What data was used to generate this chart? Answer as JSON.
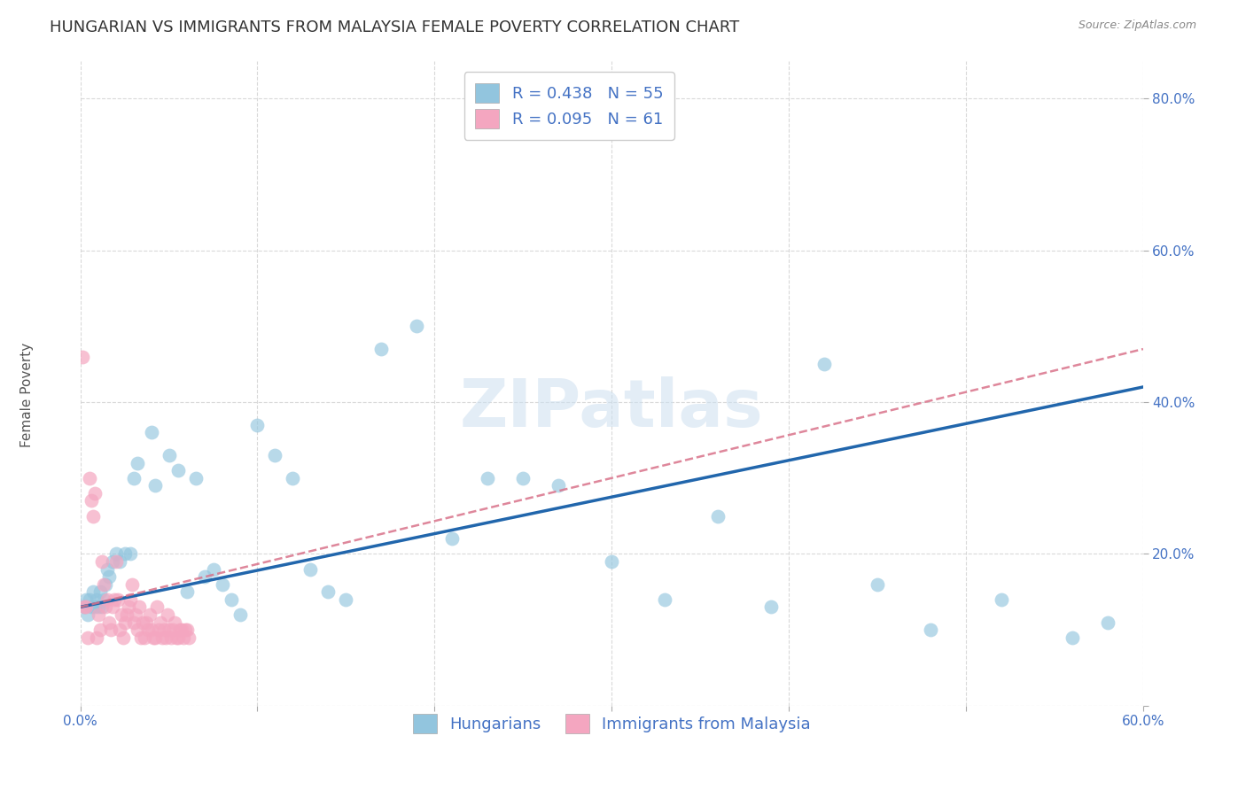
{
  "title": "HUNGARIAN VS IMMIGRANTS FROM MALAYSIA FEMALE POVERTY CORRELATION CHART",
  "source": "Source: ZipAtlas.com",
  "ylabel": "Female Poverty",
  "watermark": "ZIPatlas",
  "xlim": [
    0.0,
    0.6
  ],
  "ylim": [
    0.0,
    0.85
  ],
  "xtick_vals": [
    0.0,
    0.1,
    0.2,
    0.3,
    0.4,
    0.5,
    0.6
  ],
  "xtick_labels": [
    "0.0%",
    "",
    "",
    "",
    "",
    "",
    "60.0%"
  ],
  "ytick_vals": [
    0.0,
    0.2,
    0.4,
    0.6,
    0.8
  ],
  "ytick_labels": [
    "",
    "20.0%",
    "40.0%",
    "60.0%",
    "80.0%"
  ],
  "legend_upper_labels": [
    "R = 0.438   N = 55",
    "R = 0.095   N = 61"
  ],
  "legend_lower_labels": [
    "Hungarians",
    "Immigrants from Malaysia"
  ],
  "series1_color": "#92c5de",
  "series2_color": "#f4a6c0",
  "series1_line_color": "#2166ac",
  "series2_line_color": "#d9728a",
  "background_color": "#ffffff",
  "grid_color": "#d0d0d0",
  "title_fontsize": 13,
  "axis_label_fontsize": 11,
  "tick_fontsize": 11,
  "tick_color": "#4472c4",
  "blue_line_x": [
    0.0,
    0.6
  ],
  "blue_line_y": [
    0.13,
    0.42
  ],
  "pink_line_x": [
    0.0,
    0.6
  ],
  "pink_line_y": [
    0.13,
    0.47
  ],
  "hungarians_x": [
    0.002,
    0.003,
    0.004,
    0.005,
    0.006,
    0.007,
    0.008,
    0.009,
    0.01,
    0.011,
    0.012,
    0.013,
    0.014,
    0.015,
    0.016,
    0.018,
    0.02,
    0.022,
    0.025,
    0.028,
    0.03,
    0.032,
    0.04,
    0.042,
    0.05,
    0.055,
    0.06,
    0.065,
    0.07,
    0.075,
    0.08,
    0.085,
    0.09,
    0.1,
    0.11,
    0.12,
    0.13,
    0.14,
    0.15,
    0.17,
    0.19,
    0.21,
    0.23,
    0.25,
    0.27,
    0.3,
    0.33,
    0.36,
    0.39,
    0.42,
    0.45,
    0.48,
    0.52,
    0.56,
    0.58
  ],
  "hungarians_y": [
    0.13,
    0.14,
    0.12,
    0.14,
    0.13,
    0.15,
    0.13,
    0.14,
    0.13,
    0.15,
    0.13,
    0.14,
    0.16,
    0.18,
    0.17,
    0.19,
    0.2,
    0.19,
    0.2,
    0.2,
    0.3,
    0.32,
    0.36,
    0.29,
    0.33,
    0.31,
    0.15,
    0.3,
    0.17,
    0.18,
    0.16,
    0.14,
    0.12,
    0.37,
    0.33,
    0.3,
    0.18,
    0.15,
    0.14,
    0.47,
    0.5,
    0.22,
    0.3,
    0.3,
    0.29,
    0.19,
    0.14,
    0.25,
    0.13,
    0.45,
    0.16,
    0.1,
    0.14,
    0.09,
    0.11
  ],
  "malaysia_x": [
    0.001,
    0.002,
    0.003,
    0.004,
    0.005,
    0.006,
    0.007,
    0.008,
    0.009,
    0.01,
    0.011,
    0.012,
    0.013,
    0.014,
    0.015,
    0.016,
    0.017,
    0.018,
    0.019,
    0.02,
    0.021,
    0.022,
    0.023,
    0.024,
    0.025,
    0.026,
    0.027,
    0.028,
    0.029,
    0.03,
    0.031,
    0.032,
    0.033,
    0.034,
    0.035,
    0.036,
    0.037,
    0.038,
    0.039,
    0.04,
    0.041,
    0.042,
    0.043,
    0.044,
    0.045,
    0.046,
    0.047,
    0.048,
    0.049,
    0.05,
    0.051,
    0.052,
    0.053,
    0.054,
    0.055,
    0.056,
    0.057,
    0.058,
    0.059,
    0.06,
    0.061
  ],
  "malaysia_y": [
    0.46,
    0.13,
    0.13,
    0.09,
    0.3,
    0.27,
    0.25,
    0.28,
    0.09,
    0.12,
    0.1,
    0.19,
    0.16,
    0.13,
    0.14,
    0.11,
    0.1,
    0.13,
    0.14,
    0.19,
    0.14,
    0.1,
    0.12,
    0.09,
    0.11,
    0.12,
    0.13,
    0.14,
    0.16,
    0.11,
    0.12,
    0.1,
    0.13,
    0.09,
    0.11,
    0.09,
    0.11,
    0.1,
    0.12,
    0.1,
    0.09,
    0.09,
    0.13,
    0.1,
    0.11,
    0.09,
    0.1,
    0.09,
    0.12,
    0.1,
    0.09,
    0.1,
    0.11,
    0.09,
    0.09,
    0.1,
    0.1,
    0.09,
    0.1,
    0.1,
    0.09
  ]
}
